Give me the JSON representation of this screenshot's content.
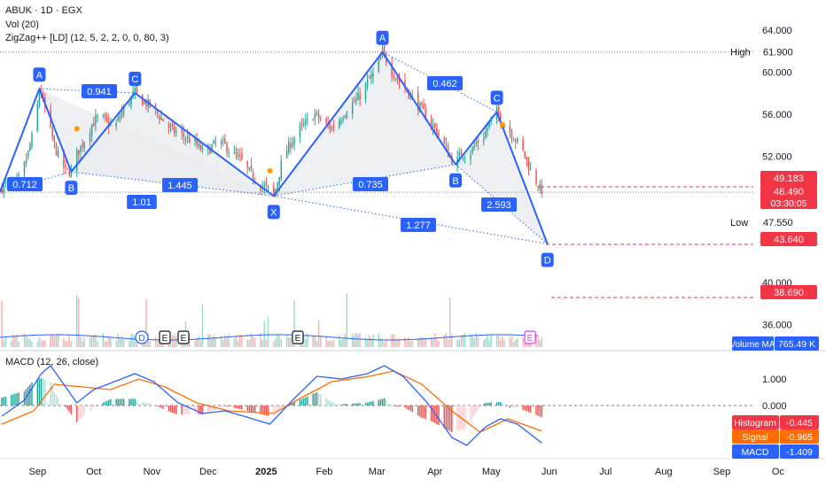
{
  "header": {
    "symbol_line": "ABUK · 1D · EGX",
    "vol_line": "Vol (20)",
    "zigzag_line": "ZigZag++ [LD] (12, 5, 2, 2, 0, 0, 80, 3)",
    "macd_line": "MACD (12, 26, close)"
  },
  "colors": {
    "up": "#26a69a",
    "down": "#ef5350",
    "pattern": "#2962ff",
    "pattern_fill": "#e9ebef",
    "macd": "#2962ff",
    "signal": "#ff6d00",
    "volume_ma": "#2962ff",
    "dashed_level": "#f23645",
    "event_badge": "#e040fb"
  },
  "chart_data": [
    {
      "type": "candlestick",
      "series_names": [
        "ABUK"
      ],
      "x_tick_labels": [
        "Sep",
        "Oct",
        "Nov",
        "Dec",
        "2025",
        "Feb",
        "Mar",
        "Apr",
        "May",
        "Jun",
        "Jul",
        "Aug",
        "Sep",
        "Oc"
      ],
      "y_tick_labels": [
        "64.000",
        "60.000",
        "56.000",
        "52.000",
        "40.000",
        "36.000"
      ],
      "ylim": [
        34,
        66
      ],
      "price_path": [
        [
          "2024-08-13",
          49.0
        ],
        [
          "2024-08-17",
          49.6
        ],
        [
          "2024-08-20",
          49.2
        ],
        [
          "2024-08-24",
          50.5
        ],
        [
          "2024-08-27",
          52.3
        ],
        [
          "2024-08-31",
          55.2
        ],
        [
          "2024-09-02",
          58.4
        ],
        [
          "2024-09-04",
          57.2
        ],
        [
          "2024-09-07",
          55.0
        ],
        [
          "2024-09-10",
          53.0
        ],
        [
          "2024-09-13",
          51.5
        ],
        [
          "2024-09-16",
          50.6
        ],
        [
          "2024-09-19",
          50.5
        ],
        [
          "2024-09-22",
          52.2
        ],
        [
          "2024-09-26",
          53.5
        ],
        [
          "2024-09-30",
          55.0
        ],
        [
          "2024-10-04",
          55.8
        ],
        [
          "2024-10-08",
          55.2
        ],
        [
          "2024-10-12",
          54.6
        ],
        [
          "2024-10-16",
          56.2
        ],
        [
          "2024-10-20",
          57.3
        ],
        [
          "2024-10-23",
          58.0
        ],
        [
          "2024-10-27",
          57.2
        ],
        [
          "2024-10-31",
          56.8
        ],
        [
          "2024-11-04",
          56.0
        ],
        [
          "2024-11-08",
          55.2
        ],
        [
          "2024-11-12",
          54.4
        ],
        [
          "2024-11-16",
          54.1
        ],
        [
          "2024-11-20",
          53.7
        ],
        [
          "2024-11-24",
          53.2
        ],
        [
          "2024-11-28",
          52.5
        ],
        [
          "2024-12-02",
          52.7
        ],
        [
          "2024-12-06",
          53.4
        ],
        [
          "2024-12-10",
          53.0
        ],
        [
          "2024-12-14",
          52.2
        ],
        [
          "2024-12-18",
          51.7
        ],
        [
          "2024-12-22",
          50.7
        ],
        [
          "2024-12-26",
          49.8
        ],
        [
          "2024-12-29",
          49.2
        ],
        [
          "2025-01-01",
          49.0
        ],
        [
          "2025-01-03",
          48.8
        ],
        [
          "2025-01-05",
          48.2
        ],
        [
          "2025-01-07",
          49.6
        ],
        [
          "2025-01-10",
          52.0
        ],
        [
          "2025-01-14",
          53.2
        ],
        [
          "2025-01-18",
          54.4
        ],
        [
          "2025-01-22",
          55.1
        ],
        [
          "2025-01-27",
          56.0
        ],
        [
          "2025-02-01",
          55.0
        ],
        [
          "2025-02-05",
          54.7
        ],
        [
          "2025-02-09",
          55.5
        ],
        [
          "2025-02-13",
          56.4
        ],
        [
          "2025-02-17",
          57.1
        ],
        [
          "2025-02-21",
          58.0
        ],
        [
          "2025-02-25",
          59.3
        ],
        [
          "2025-03-01",
          60.2
        ],
        [
          "2025-03-04",
          61.9
        ],
        [
          "2025-03-08",
          60.4
        ],
        [
          "2025-03-12",
          59.3
        ],
        [
          "2025-03-16",
          58.5
        ],
        [
          "2025-03-20",
          57.6
        ],
        [
          "2025-03-24",
          56.6
        ],
        [
          "2025-03-28",
          55.6
        ],
        [
          "2025-04-01",
          54.6
        ],
        [
          "2025-04-05",
          53.4
        ],
        [
          "2025-04-09",
          51.9
        ],
        [
          "2025-04-12",
          51.2
        ],
        [
          "2025-04-15",
          52.3
        ],
        [
          "2025-04-19",
          52.1
        ],
        [
          "2025-04-23",
          53.2
        ],
        [
          "2025-04-27",
          53.9
        ],
        [
          "2025-05-01",
          55.5
        ],
        [
          "2025-05-04",
          56.2
        ],
        [
          "2025-05-07",
          55.2
        ],
        [
          "2025-05-10",
          54.6
        ],
        [
          "2025-05-14",
          53.6
        ],
        [
          "2025-05-18",
          52.4
        ],
        [
          "2025-05-22",
          50.6
        ],
        [
          "2025-05-26",
          49.3
        ],
        [
          "2025-05-28",
          48.49
        ]
      ],
      "pattern": {
        "points": [
          {
            "label": "A",
            "date": "2024-09-02",
            "price": 58.4
          },
          {
            "label": "B",
            "date": "2024-09-19",
            "price": 50.5
          },
          {
            "label": "C",
            "date": "2024-10-23",
            "price": 58.0
          },
          {
            "label": "X",
            "date": "2025-01-05",
            "price": 48.2
          },
          {
            "label": "A",
            "date": "2025-03-04",
            "price": 61.9
          },
          {
            "label": "B",
            "date": "2025-04-12",
            "price": 51.2
          },
          {
            "label": "C",
            "date": "2025-05-04",
            "price": 56.2
          },
          {
            "label": "D",
            "date": "2025-05-31",
            "price": 43.64
          }
        ],
        "ratio_labels": [
          "0.712",
          "0.941",
          "1.445",
          "1.01",
          "0.735",
          "0.462",
          "2.593",
          "1.277"
        ]
      },
      "price_labels": [
        {
          "name": "High",
          "value": "61.900"
        },
        {
          "name": "Low",
          "value": "47.550"
        }
      ],
      "price_badges": [
        {
          "value": "49.183"
        },
        {
          "value": "48.490",
          "countdown": "03:30:05"
        },
        {
          "value": "43.640"
        },
        {
          "value": "38.690"
        }
      ],
      "event_markers": [
        "D",
        "E",
        "E",
        "E",
        "E"
      ]
    },
    {
      "type": "bar",
      "series_names": [
        "Volume",
        "Volume MA"
      ],
      "legend_label": "Volume MA",
      "legend_value": "765.49 K"
    },
    {
      "type": "line",
      "series_names": [
        "MACD",
        "Signal",
        "Histogram"
      ],
      "y_tick_labels": [
        "1.000",
        "0.000"
      ],
      "ylim": [
        -1.9,
        2.0
      ],
      "macd_path": [
        [
          "2024-08-13",
          -0.4
        ],
        [
          "2024-08-25",
          0.2
        ],
        [
          "2024-09-03",
          1.2
        ],
        [
          "2024-09-08",
          1.5
        ],
        [
          "2024-09-15",
          0.8
        ],
        [
          "2024-09-22",
          0.1
        ],
        [
          "2024-10-01",
          0.6
        ],
        [
          "2024-10-12",
          0.9
        ],
        [
          "2024-10-23",
          1.2
        ],
        [
          "2024-11-02",
          0.9
        ],
        [
          "2024-11-15",
          0.1
        ],
        [
          "2024-11-28",
          -0.3
        ],
        [
          "2024-12-10",
          -0.2
        ],
        [
          "2024-12-20",
          -0.4
        ],
        [
          "2025-01-03",
          -0.7
        ],
        [
          "2025-01-15",
          0.2
        ],
        [
          "2025-01-28",
          1.1
        ],
        [
          "2025-02-10",
          1.0
        ],
        [
          "2025-02-24",
          1.2
        ],
        [
          "2025-03-05",
          1.5
        ],
        [
          "2025-03-15",
          1.1
        ],
        [
          "2025-03-28",
          0.1
        ],
        [
          "2025-04-10",
          -1.2
        ],
        [
          "2025-04-18",
          -1.5
        ],
        [
          "2025-04-28",
          -0.8
        ],
        [
          "2025-05-06",
          -0.5
        ],
        [
          "2025-05-15",
          -0.7
        ],
        [
          "2025-05-28",
          -1.409
        ]
      ],
      "signal_path": [
        [
          "2024-08-13",
          -0.7
        ],
        [
          "2024-08-30",
          -0.2
        ],
        [
          "2024-09-10",
          0.8
        ],
        [
          "2024-09-25",
          0.7
        ],
        [
          "2024-10-10",
          0.6
        ],
        [
          "2024-10-25",
          1.0
        ],
        [
          "2024-11-08",
          0.7
        ],
        [
          "2024-11-25",
          0.1
        ],
        [
          "2024-12-12",
          -0.2
        ],
        [
          "2025-01-05",
          -0.3
        ],
        [
          "2025-01-20",
          0.3
        ],
        [
          "2025-02-05",
          0.9
        ],
        [
          "2025-02-25",
          1.1
        ],
        [
          "2025-03-10",
          1.3
        ],
        [
          "2025-03-25",
          0.8
        ],
        [
          "2025-04-10",
          -0.2
        ],
        [
          "2025-04-25",
          -1.0
        ],
        [
          "2025-05-10",
          -0.5
        ],
        [
          "2025-05-28",
          -0.965
        ]
      ],
      "legend": [
        {
          "name": "Histogram",
          "value": "-0.445"
        },
        {
          "name": "Signal",
          "value": "-0.965"
        },
        {
          "name": "MACD",
          "value": "-1.409"
        }
      ]
    }
  ]
}
